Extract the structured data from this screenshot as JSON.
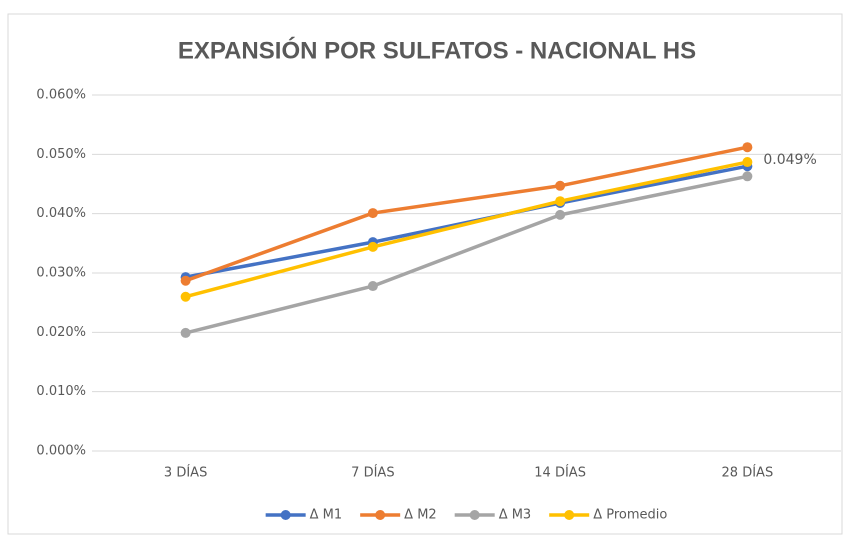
{
  "chart_data": {
    "type": "line",
    "title": "EXPANSIÓN POR SULFATOS - NACIONAL HS",
    "categories": [
      "3 DÍAS",
      "7 DÍAS",
      "14 DÍAS",
      "28 DÍAS"
    ],
    "series": [
      {
        "name": "Δ M1",
        "color": "#4472c4",
        "values": [
          0.0293,
          0.0352,
          0.0418,
          0.048
        ]
      },
      {
        "name": "Δ M2",
        "color": "#ed7d31",
        "values": [
          0.0287,
          0.0401,
          0.0447,
          0.0512
        ]
      },
      {
        "name": "Δ M3",
        "color": "#a5a5a5",
        "values": [
          0.0199,
          0.0278,
          0.0398,
          0.0463
        ]
      },
      {
        "name": "Δ Promedio",
        "color": "#ffc000",
        "values": [
          0.026,
          0.0344,
          0.0421,
          0.0487
        ],
        "value_labels": [
          null,
          null,
          null,
          "0.049%"
        ]
      }
    ],
    "ylim": [
      0,
      0.06
    ],
    "yticks": [
      {
        "value": 0,
        "label": "0.000%"
      },
      {
        "value": 0.01,
        "label": "0.010%"
      },
      {
        "value": 0.02,
        "label": "0.020%"
      },
      {
        "value": 0.03,
        "label": "0.030%"
      },
      {
        "value": 0.04,
        "label": "0.040%"
      },
      {
        "value": 0.05,
        "label": "0.050%"
      },
      {
        "value": 0.06,
        "label": "0.060%"
      }
    ],
    "grid": true,
    "legend": "bottom"
  }
}
